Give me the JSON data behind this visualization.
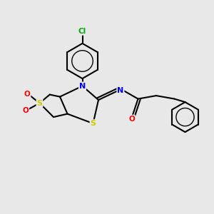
{
  "background_color": "#e8e8e8",
  "bond_color": "#000000",
  "atom_colors": {
    "N": "#0000ff",
    "S": "#cccc00",
    "O": "#ff0000",
    "Cl": "#00aa00",
    "C": "#000000"
  },
  "figsize": [
    3.0,
    3.0
  ],
  "dpi": 100
}
